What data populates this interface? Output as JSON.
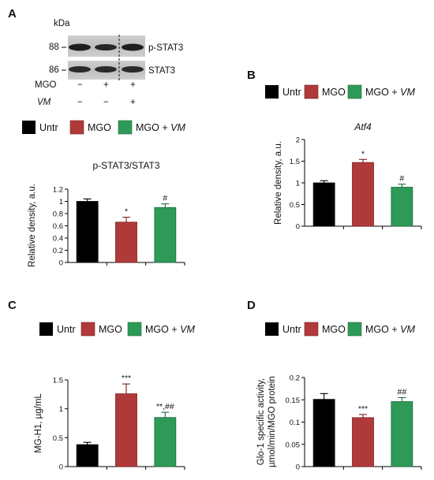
{
  "colors": {
    "untr": "#000000",
    "mgo": "#b03a3a",
    "mgo_vm": "#2e9a58",
    "axis": "#000000"
  },
  "panels": {
    "A": "A",
    "B": "B",
    "C": "C",
    "D": "D"
  },
  "legend": {
    "untr": "Untr",
    "mgo": "MGO",
    "mgo_vm_prefix": "MGO + ",
    "mgo_vm_italic": "VM"
  },
  "blot": {
    "kda_label": "kDa",
    "marker_88": "88",
    "marker_86": "86",
    "band_label_pstat3": "p-STAT3",
    "band_label_stat3": "STAT3",
    "row_mgo_label": "MGO",
    "row_vm_label": "VM",
    "row_mgo_signs": [
      "−",
      "+",
      "+"
    ],
    "row_vm_signs": [
      "−",
      "−",
      "+"
    ]
  },
  "chart_data": [
    {
      "id": "A",
      "type": "bar",
      "title": "p-STAT3/STAT3",
      "title_italic": false,
      "ylabel": "Relative density, a.u.",
      "categories": [
        "Untr",
        "MGO",
        "MGO + VM"
      ],
      "values": [
        1.0,
        0.66,
        0.9
      ],
      "errors": [
        0.04,
        0.08,
        0.06
      ],
      "significance": [
        "",
        "*",
        "#"
      ],
      "ylim": [
        0,
        1.2
      ],
      "yticks": [
        "0",
        "0.2",
        "0.4",
        "0.6",
        "0.8",
        "1",
        "1.2"
      ],
      "grid": false
    },
    {
      "id": "B",
      "type": "bar",
      "title": "Atf4",
      "title_italic": true,
      "ylabel": "Relative density, a.u.",
      "categories": [
        "Untr",
        "MGO",
        "MGO + VM"
      ],
      "values": [
        1.0,
        1.47,
        0.9
      ],
      "errors": [
        0.05,
        0.07,
        0.07
      ],
      "significance": [
        "",
        "*",
        "#"
      ],
      "ylim": [
        0,
        2
      ],
      "yticks": [
        "0",
        "0.5",
        "1",
        "1.5",
        "2"
      ],
      "grid": false
    },
    {
      "id": "C",
      "type": "bar",
      "title": "",
      "title_italic": false,
      "ylabel": "MG-H1, µg/mL",
      "categories": [
        "Untr",
        "MGO",
        "MGO + VM"
      ],
      "values": [
        0.38,
        1.26,
        0.85
      ],
      "errors": [
        0.04,
        0.17,
        0.09
      ],
      "significance": [
        "",
        "***",
        "**,##"
      ],
      "ylim": [
        0,
        1.5
      ],
      "yticks": [
        "0",
        "0.5",
        "1",
        "1.5"
      ],
      "grid": false
    },
    {
      "id": "D",
      "type": "bar",
      "title": "",
      "title_italic": false,
      "ylabel": "Glo-1 specific activity,",
      "ylabel2": "µmol/min/MGO protein",
      "categories": [
        "Untr",
        "MGO",
        "MGO + VM"
      ],
      "values": [
        0.151,
        0.11,
        0.146
      ],
      "errors": [
        0.013,
        0.007,
        0.009
      ],
      "significance": [
        "",
        "***",
        "##"
      ],
      "ylim": [
        0,
        0.2
      ],
      "yticks": [
        "0",
        "0.05",
        "0.1",
        "0.15",
        "0.2"
      ],
      "grid": false
    }
  ]
}
